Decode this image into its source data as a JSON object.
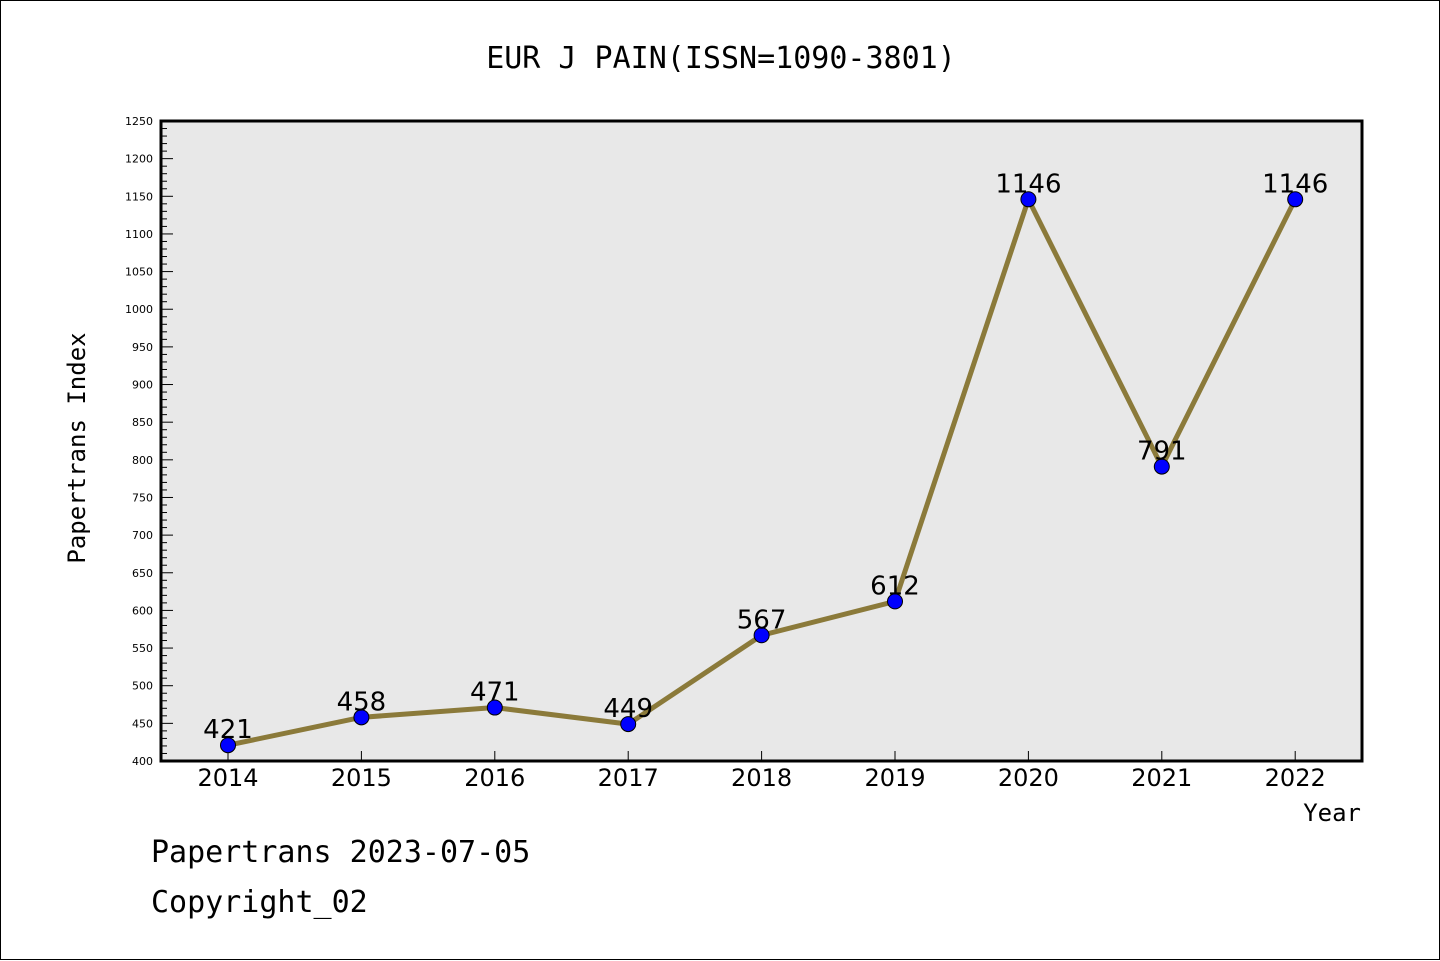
{
  "chart_data": {
    "type": "line",
    "title": "EUR J PAIN(ISSN=1090-3801)",
    "xlabel": "Year",
    "ylabel": "Papertrans Index",
    "categories": [
      "2014",
      "2015",
      "2016",
      "2017",
      "2018",
      "2019",
      "2020",
      "2021",
      "2022"
    ],
    "series": [
      {
        "values": [
          421,
          458,
          471,
          449,
          567,
          612,
          1146,
          791,
          1146
        ]
      }
    ],
    "data_labels": [
      "421",
      "458",
      "471",
      "449",
      "567",
      "612",
      "1146",
      "791",
      "1146"
    ],
    "ylim": [
      400,
      1250
    ],
    "yticks": [
      400,
      450,
      500,
      550,
      600,
      650,
      700,
      750,
      800,
      850,
      900,
      950,
      1000,
      1050,
      1100,
      1150,
      1200,
      1250
    ],
    "ytick_labels": [
      "400",
      "450",
      "500",
      "550",
      "600",
      "650",
      "700",
      "750",
      "800",
      "850",
      "900",
      "950",
      "1000",
      "1050",
      "1100",
      "1150",
      "1200",
      "1250"
    ],
    "grid": false,
    "legend": "none",
    "colors": {
      "line": "#8b7a3a",
      "marker": "#0000ff",
      "plot_background": "#e8e8e8"
    }
  },
  "footer": {
    "line1": "Papertrans 2023-07-05",
    "line2": "Copyright_02"
  }
}
